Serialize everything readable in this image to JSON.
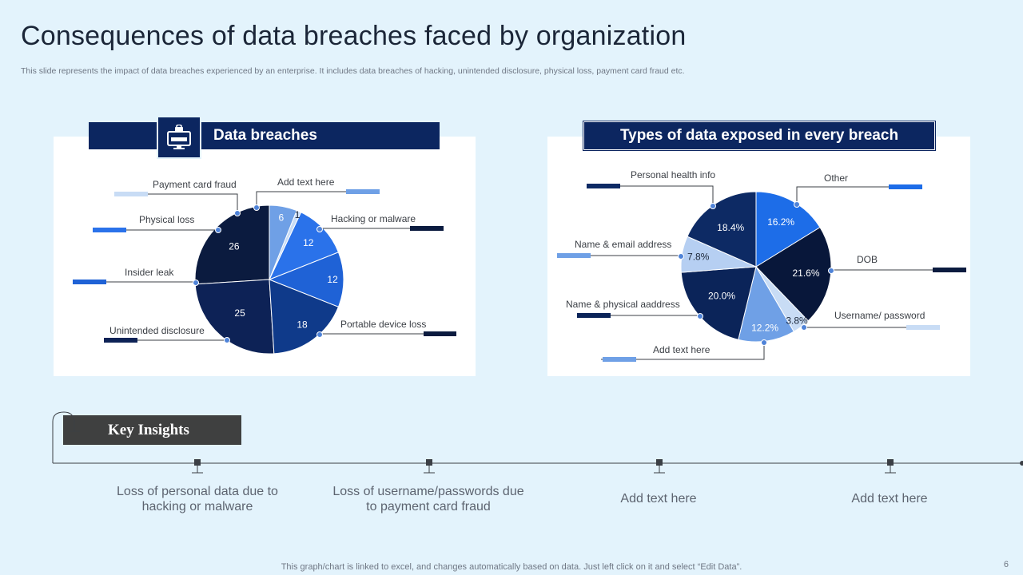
{
  "title": "Consequences of data breaches faced by organization",
  "subtitle": "This slide represents the impact of data breaches experienced by an enterprise. It includes data breaches of hacking, unintended disclosure, physical loss, payment card fraud etc.",
  "panels": {
    "left_header": "Data breaches",
    "right_header": "Types of data exposed in every breach"
  },
  "chart_data": [
    {
      "type": "pie",
      "title": "Data breaches",
      "slices": [
        {
          "label": "Hacking or malware",
          "value": 26,
          "display": "26",
          "color": "#0b1b3f"
        },
        {
          "label": "Portable device loss",
          "value": 25,
          "display": "25",
          "color": "#0d2256"
        },
        {
          "label": "Unintended disclosure",
          "value": 18,
          "display": "18",
          "color": "#0f3a8a"
        },
        {
          "label": "Insider leak",
          "value": 12,
          "display": "12",
          "color": "#1f62d6"
        },
        {
          "label": "Physical loss",
          "value": 12,
          "display": "12",
          "color": "#2a72ea"
        },
        {
          "label": "Payment card fraud",
          "value": 1,
          "display": "1",
          "color": "#c8dcf5"
        },
        {
          "label": "Add text here",
          "value": 6,
          "display": "6",
          "color": "#6fa0e6"
        }
      ]
    },
    {
      "type": "pie",
      "title": "Types of data exposed in every breach",
      "slices": [
        {
          "label": "Other",
          "value": 16.2,
          "display": "16.2%",
          "color": "#1d6de8"
        },
        {
          "label": "DOB",
          "value": 21.6,
          "display": "21.6%",
          "color": "#08173a"
        },
        {
          "label": "Username/ password",
          "value": 3.8,
          "display": "3.8%",
          "color": "#c8dcf5"
        },
        {
          "label": "Add text here",
          "value": 12.2,
          "display": "12.2%",
          "color": "#6fa0e6"
        },
        {
          "label": "Name & physical aaddress",
          "value": 20.0,
          "display": "20.0%",
          "color": "#0b2459"
        },
        {
          "label": "Name & email address",
          "value": 7.8,
          "display": "7.8%",
          "color": "#b6cff2"
        },
        {
          "label": "Personal health info",
          "value": 18.4,
          "display": "18.4%",
          "color": "#0d2a64"
        }
      ]
    }
  ],
  "insights": {
    "title": "Key Insights",
    "items": [
      "Loss of personal data due to hacking or malware",
      "Loss of username/passwords due to payment card fraud",
      "Add text here",
      "Add text here"
    ]
  },
  "footer": "This graph/chart is linked to excel,  and changes automatically based on data. Just left click on it and select “Edit Data”.",
  "page_number": "6"
}
